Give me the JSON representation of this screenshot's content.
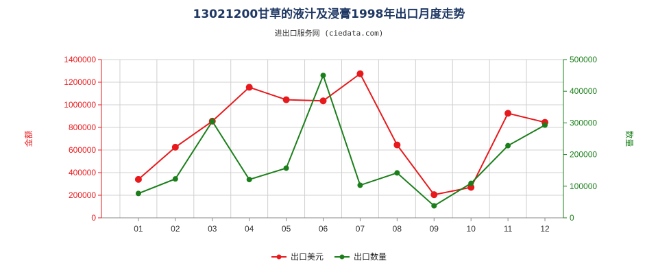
{
  "chart_data": {
    "type": "line",
    "title": "13021200甘草的液汁及浸膏1998年出口月度走势",
    "subtitle": "进出口服务网 (ciedata.com)",
    "categories": [
      "01",
      "02",
      "03",
      "04",
      "05",
      "06",
      "07",
      "08",
      "09",
      "10",
      "11",
      "12"
    ],
    "y_left": {
      "label": "金额",
      "ylim": [
        0,
        1400000
      ],
      "ticks": [
        0,
        200000,
        400000,
        600000,
        800000,
        1000000,
        1200000,
        1400000
      ],
      "color": "#e8191c"
    },
    "y_right": {
      "label": "数量",
      "ylim": [
        0,
        500000
      ],
      "ticks": [
        0,
        100000,
        200000,
        300000,
        400000,
        500000
      ],
      "color": "#1a7f1a"
    },
    "series": [
      {
        "name": "出口美元",
        "axis": "left",
        "color": "#e8191c",
        "values": [
          340000,
          625000,
          855000,
          1155000,
          1045000,
          1035000,
          1275000,
          645000,
          205000,
          270000,
          925000,
          845000
        ]
      },
      {
        "name": "出口数量",
        "axis": "right",
        "color": "#1a7f1a",
        "values": [
          77000,
          123000,
          305000,
          121000,
          157000,
          450000,
          103000,
          142000,
          38000,
          109000,
          228000,
          293000
        ]
      }
    ],
    "grid": true,
    "legend_position": "bottom-center"
  }
}
